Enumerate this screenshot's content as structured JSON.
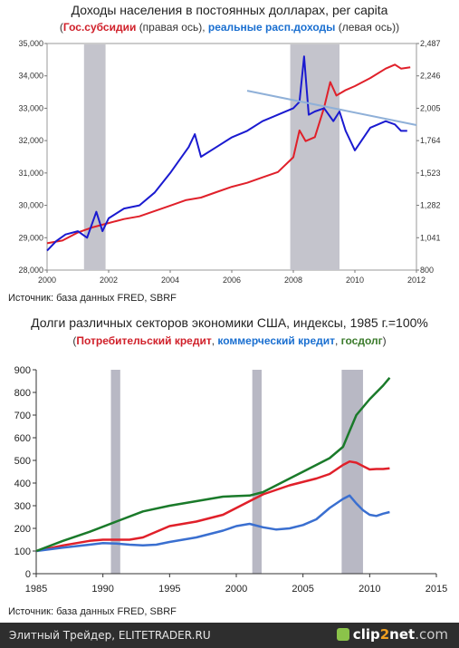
{
  "chart1": {
    "title": "Доходы населения в постоянных долларах, per capita",
    "subtitle": {
      "red_label": "Гос.субсидии",
      "red_note": "(правая ось),",
      "blue_label": "реальные расп.доходы",
      "blue_note": "(левая ось))"
    },
    "source": "Источник: база данных FRED, SBRF"
  },
  "chart2": {
    "title": "Долги различных секторов экономики США, индексы, 1985 г.=100%",
    "subtitle": {
      "red_label": "Потребительский кредит",
      "blue_label": "коммерческий кредит",
      "green_label": "госдолг"
    },
    "source": "Источник: база данных FRED, SBRF"
  },
  "footer": {
    "text": "Элитный Трейдер, ELITETRADER.RU",
    "logo_a": "clip",
    "logo_b": "2",
    "logo_c": "net",
    "logo_d": ".com"
  },
  "chart_data": [
    {
      "type": "line",
      "title": "Доходы населения в постоянных долларах, per capita",
      "x_range": [
        2000,
        2012
      ],
      "x_ticks": [
        "2000",
        "2002",
        "2004",
        "2006",
        "2008",
        "2010",
        "2012"
      ],
      "y_left": {
        "range": [
          28000,
          35000
        ],
        "ticks": [
          "28,000",
          "29,000",
          "30,000",
          "31,000",
          "32,000",
          "33,000",
          "34,000",
          "35,000"
        ]
      },
      "y_right": {
        "range": [
          800,
          2487
        ],
        "ticks": [
          "800",
          "1,041",
          "1,282",
          "1,523",
          "1,764",
          "2,005",
          "2,246",
          "2,487"
        ]
      },
      "recessions": [
        [
          2001.2,
          2001.9
        ],
        [
          2007.9,
          2009.5
        ]
      ],
      "grid": false,
      "colors": {
        "red": "#e0202a",
        "blue": "#1a1ad0",
        "trend": "#8fb0d8",
        "recession": "#c4c4cc"
      },
      "series": [
        {
          "name": "Гос.субсидии",
          "axis": "right",
          "color": "#e0202a",
          "x": [
            2000,
            2000.5,
            2001,
            2001.5,
            2002,
            2002.5,
            2003,
            2003.5,
            2004,
            2004.5,
            2005,
            2005.5,
            2006,
            2006.5,
            2007,
            2007.5,
            2008,
            2008.2,
            2008.4,
            2008.7,
            2009,
            2009.2,
            2009.4,
            2009.7,
            2010,
            2010.5,
            2011,
            2011.3,
            2011.5,
            2011.8
          ],
          "y": [
            1000,
            1020,
            1080,
            1120,
            1150,
            1180,
            1200,
            1240,
            1280,
            1320,
            1340,
            1380,
            1420,
            1450,
            1490,
            1530,
            1640,
            1840,
            1760,
            1790,
            2010,
            2200,
            2100,
            2140,
            2170,
            2230,
            2300,
            2330,
            2300,
            2310
          ]
        },
        {
          "name": "реальные расп.доходы",
          "axis": "left",
          "color": "#1a1ad0",
          "x": [
            2000,
            2000.3,
            2000.6,
            2001,
            2001.3,
            2001.6,
            2001.8,
            2002,
            2002.5,
            2003,
            2003.5,
            2004,
            2004.3,
            2004.6,
            2004.8,
            2005,
            2005.5,
            2006,
            2006.5,
            2007,
            2007.5,
            2008,
            2008.2,
            2008.35,
            2008.5,
            2008.7,
            2009,
            2009.3,
            2009.5,
            2009.7,
            2010,
            2010.5,
            2011,
            2011.3,
            2011.5,
            2011.7
          ],
          "y": [
            28600,
            28900,
            29100,
            29200,
            29000,
            29800,
            29200,
            29600,
            29900,
            30000,
            30400,
            31000,
            31400,
            31800,
            32200,
            31500,
            31800,
            32100,
            32300,
            32600,
            32800,
            33000,
            33200,
            34600,
            32800,
            32900,
            33000,
            32600,
            32900,
            32300,
            31700,
            32400,
            32600,
            32500,
            32300,
            32300
          ]
        },
        {
          "name": "",
          "axis": "left",
          "color": "#8fb0d8",
          "x": [
            2006.5,
            2012
          ],
          "y": [
            33540,
            32480
          ]
        }
      ]
    },
    {
      "type": "line",
      "title": "Долги различных секторов экономики США, индексы, 1985 г.=100%",
      "x_range": [
        1985,
        2015
      ],
      "x_ticks": [
        "1985",
        "1990",
        "1995",
        "2000",
        "2005",
        "2010",
        "2015"
      ],
      "y_range": [
        0,
        900
      ],
      "y_ticks": [
        "0",
        "100",
        "200",
        "300",
        "400",
        "500",
        "600",
        "700",
        "800",
        "900"
      ],
      "recessions": [
        [
          1990.6,
          1991.3
        ],
        [
          2001.2,
          2001.9
        ],
        [
          2007.9,
          2009.5
        ]
      ],
      "grid": false,
      "colors": {
        "red": "#e0202a",
        "blue": "#3a6fd0",
        "green": "#1a7a2a",
        "recession": "#b8b8c4"
      },
      "series": [
        {
          "name": "Потребительский кредит",
          "color": "#e0202a",
          "x": [
            1985,
            1987,
            1989,
            1990,
            1991,
            1992,
            1993,
            1995,
            1997,
            1999,
            2000,
            2001,
            2002,
            2004,
            2006,
            2007,
            2008,
            2008.5,
            2009,
            2009.5,
            2010,
            2010.5,
            2011,
            2011.5
          ],
          "y": [
            100,
            125,
            145,
            150,
            150,
            150,
            160,
            210,
            230,
            260,
            290,
            320,
            350,
            390,
            420,
            440,
            480,
            495,
            490,
            475,
            460,
            462,
            462,
            465
          ]
        },
        {
          "name": "коммерческий кредит",
          "color": "#3a6fd0",
          "x": [
            1985,
            1987,
            1989,
            1990,
            1991,
            1992,
            1993,
            1994,
            1995,
            1997,
            1999,
            2000,
            2001,
            2002,
            2003,
            2004,
            2005,
            2006,
            2007,
            2008,
            2008.5,
            2009,
            2009.5,
            2010,
            2010.5,
            2011,
            2011.5
          ],
          "y": [
            100,
            115,
            128,
            135,
            133,
            128,
            125,
            128,
            140,
            160,
            190,
            210,
            220,
            205,
            195,
            200,
            215,
            240,
            290,
            330,
            345,
            310,
            280,
            260,
            255,
            265,
            272
          ]
        },
        {
          "name": "госдолг",
          "color": "#1a7a2a",
          "x": [
            1985,
            1987,
            1989,
            1991,
            1993,
            1995,
            1997,
            1999,
            2001,
            2002,
            2003,
            2004,
            2005,
            2006,
            2007,
            2008,
            2008.5,
            2009,
            2010,
            2011,
            2011.5
          ],
          "y": [
            100,
            145,
            185,
            230,
            275,
            300,
            320,
            340,
            345,
            360,
            390,
            420,
            450,
            480,
            510,
            560,
            630,
            700,
            770,
            830,
            865
          ]
        }
      ]
    }
  ]
}
